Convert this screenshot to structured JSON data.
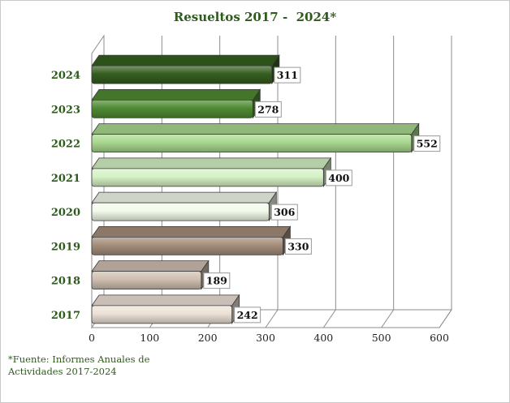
{
  "chart_data": {
    "type": "bar",
    "orientation": "horizontal",
    "style": "3d",
    "title": "Resueltos 2017 -  2024*",
    "categories": [
      "2017",
      "2018",
      "2019",
      "2020",
      "2021",
      "2022",
      "2023",
      "2024"
    ],
    "values": [
      242,
      189,
      330,
      306,
      400,
      552,
      278,
      311
    ],
    "data_labels": [
      "242",
      "189",
      "330",
      "306",
      "400",
      "552",
      "278",
      "311"
    ],
    "xlim": [
      0,
      600
    ],
    "x_ticks": [
      "0",
      "100",
      "200",
      "300",
      "400",
      "500",
      "600"
    ],
    "grid": true,
    "legend": "none",
    "bar_colors": [
      "#ece1d6",
      "#cfbeb0",
      "#a48d7a",
      "#f2fbeb",
      "#d6f2c4",
      "#a8d88e",
      "#4f8a33",
      "#355f20"
    ]
  },
  "footnote": {
    "line1": "*Fuente: Informes Anuales de",
    "line2": "Actividades 2017-2024"
  }
}
